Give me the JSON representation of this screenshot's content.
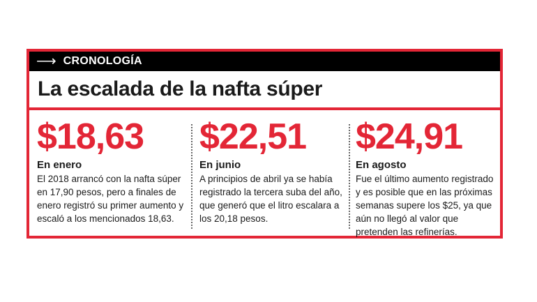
{
  "kicker": {
    "icon": "arrow-right-icon",
    "label": "CRONOLOGÍA"
  },
  "headline": "La escalada de la nafta súper",
  "colors": {
    "accent": "#e32636",
    "band": "#000000",
    "text": "#1a1a1a"
  },
  "entries": [
    {
      "price": "$18,63",
      "period": "En enero",
      "description": "El 2018 arrancó con la nafta súper en 17,90 pesos, pero a finales de enero registró su primer aumento y escaló a los mencionados 18,63."
    },
    {
      "price": "$22,51",
      "period": "En junio",
      "description": "A principios de abril ya se había registrado la tercera suba del año, que generó que el litro escalara a los 20,18 pesos."
    },
    {
      "price": "$24,91",
      "period": "En agosto",
      "description": "Fue el último aumento regis­trado y es posible que en las próximas semanas supere los $25, ya que aún no llegó al valor que pretenden las refinerías."
    }
  ]
}
